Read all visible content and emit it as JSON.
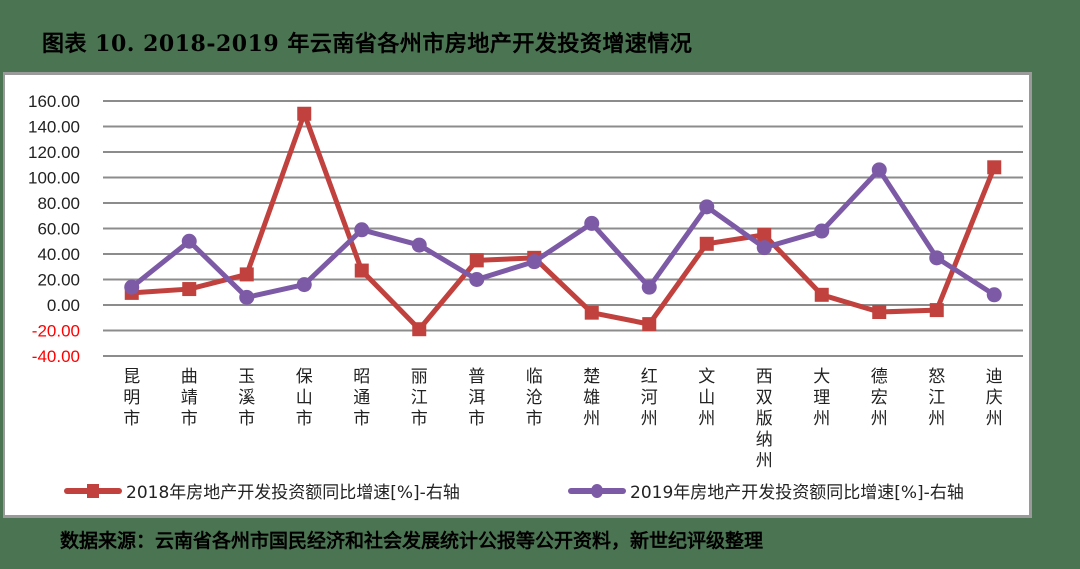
{
  "title": "图表 10. 2018-2019 年云南省各州市房地产开发投资增速情况",
  "source": "数据来源：云南省各州市国民经济和社会发展统计公报等公开资料，新世纪评级整理",
  "colors": {
    "background": "#4b7452",
    "series_2018": "#c0413d",
    "series_2019": "#7d5aa6",
    "grid": "#8c8c8c",
    "negative_tick": "#ff0000"
  },
  "legend": {
    "s2018": "2018年房地产开发投资额同比增速[%]-右轴",
    "s2019": "2019年房地产开发投资额同比增速[%]-右轴"
  },
  "chart_data": {
    "type": "line",
    "title": "2018-2019 年云南省各州市房地产开发投资增速情况",
    "xlabel": "",
    "ylabel": "",
    "ylim": [
      -40,
      160
    ],
    "yticks": [
      "160.00",
      "140.00",
      "120.00",
      "100.00",
      "80.00",
      "60.00",
      "40.00",
      "20.00",
      "0.00",
      "-20.00",
      "-40.00"
    ],
    "grid": true,
    "legend_position": "bottom",
    "categories": [
      "昆明市",
      "曲靖市",
      "玉溪市",
      "保山市",
      "昭通市",
      "丽江市",
      "普洱市",
      "临沧市",
      "楚雄州",
      "红河州",
      "文山州",
      "西双版纳州",
      "大理州",
      "德宏州",
      "怒江州",
      "迪庆州"
    ],
    "series": [
      {
        "name": "2018年房地产开发投资额同比增速[%]-右轴",
        "marker": "square",
        "values": [
          9.5,
          12.5,
          24,
          150,
          27,
          -19,
          35,
          37,
          -6,
          -15,
          48,
          55,
          8,
          -5.5,
          -4,
          108
        ]
      },
      {
        "name": "2019年房地产开发投资额同比增速[%]-右轴",
        "marker": "circle",
        "values": [
          14,
          50,
          6,
          16,
          59,
          47,
          20,
          34,
          64,
          14,
          77,
          45,
          58,
          106,
          37,
          8
        ]
      }
    ]
  }
}
